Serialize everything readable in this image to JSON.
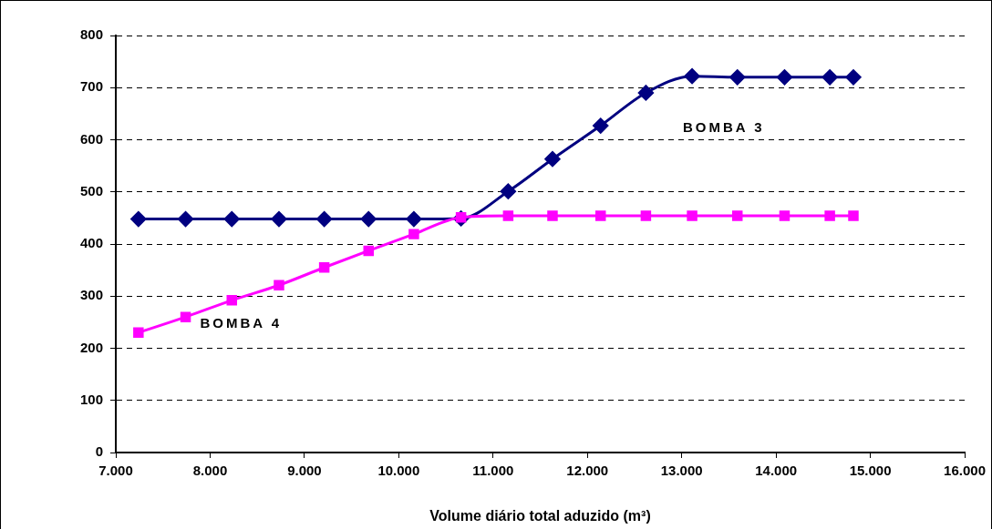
{
  "chart_data": {
    "type": "line",
    "xlabel": "Volume diário total aduzido (m³)",
    "xlim": [
      7000,
      16000
    ],
    "xticks": [
      {
        "value": 7000,
        "label": "7.000"
      },
      {
        "value": 8000,
        "label": "8.000"
      },
      {
        "value": 9000,
        "label": "9.000"
      },
      {
        "value": 10000,
        "label": "10.000"
      },
      {
        "value": 11000,
        "label": "11.000"
      },
      {
        "value": 12000,
        "label": "12.000"
      },
      {
        "value": 13000,
        "label": "13.000"
      },
      {
        "value": 14000,
        "label": "14.000"
      },
      {
        "value": 15000,
        "label": "15.000"
      },
      {
        "value": 16000,
        "label": "16.000"
      }
    ],
    "ylim": [
      0,
      800
    ],
    "yticks": [
      0,
      100,
      200,
      300,
      400,
      500,
      600,
      700,
      800
    ],
    "grid": "y",
    "legend": false,
    "line_style": "solid",
    "x": [
      7240,
      7740,
      8230,
      8730,
      9210,
      9680,
      10160,
      10660,
      11160,
      11630,
      12140,
      12620,
      13110,
      13590,
      14090,
      14570,
      14820
    ],
    "series": [
      {
        "name": "BOMBA 3",
        "color": "#000080",
        "marker": "diamond",
        "values": [
          448,
          448,
          448,
          448,
          448,
          448,
          448,
          449,
          501,
          563,
          627,
          690,
          722,
          720,
          720,
          720,
          720
        ]
      },
      {
        "name": "BOMBA 4",
        "color": "#ff00ff",
        "marker": "square",
        "values": [
          230,
          260,
          292,
          321,
          355,
          387,
          419,
          451,
          454,
          454,
          454,
          454,
          454,
          454,
          454,
          454,
          454
        ]
      }
    ]
  }
}
